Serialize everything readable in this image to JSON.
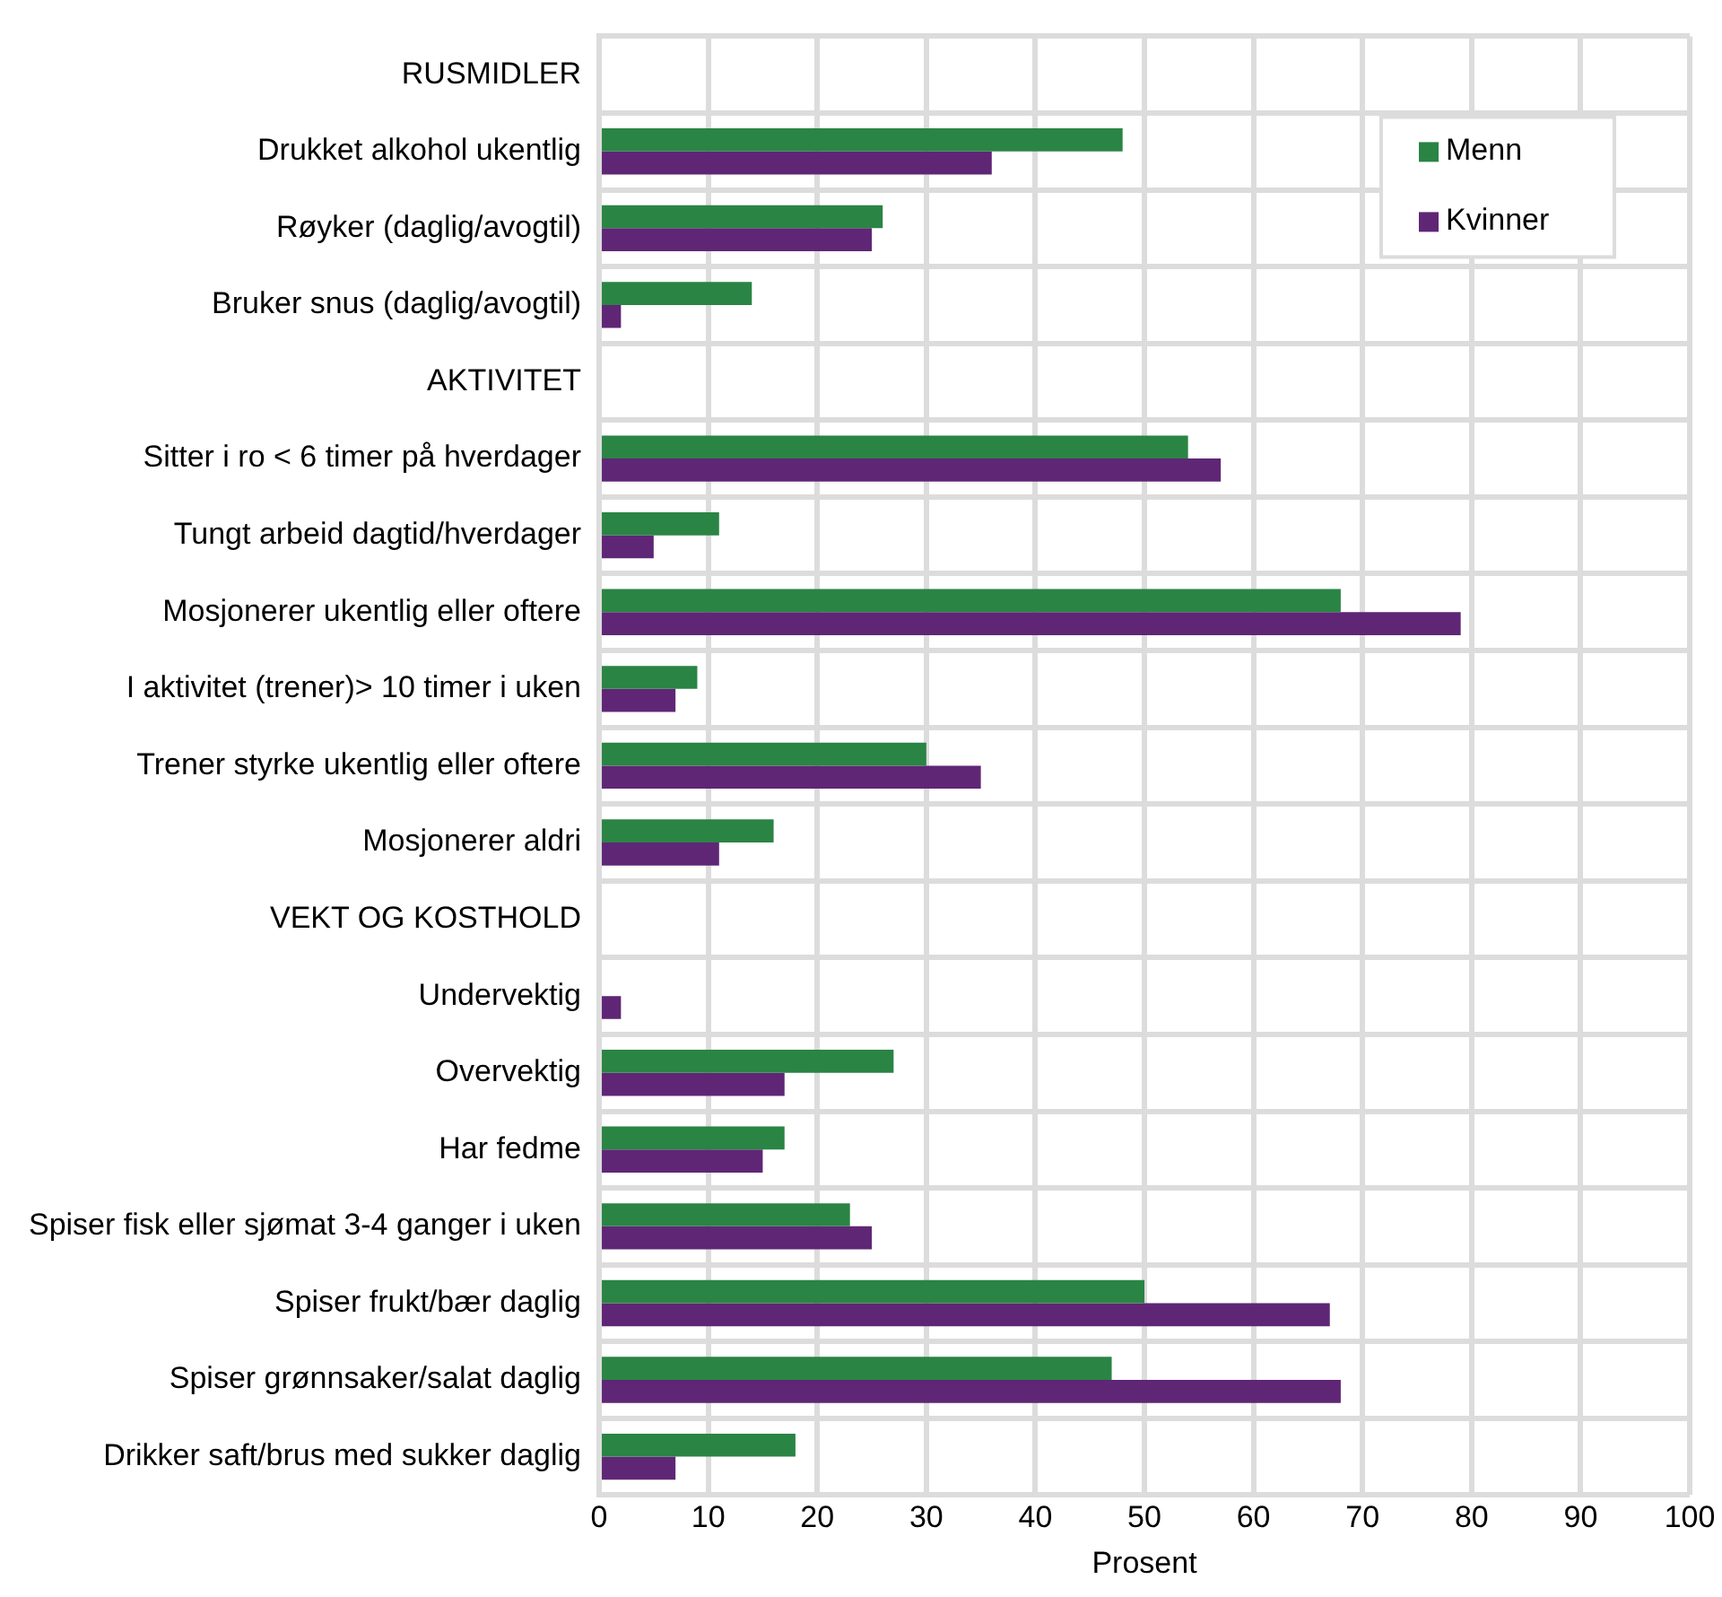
{
  "chart_data": {
    "type": "bar",
    "orientation": "horizontal",
    "xlabel": "Prosent",
    "categories": [
      "RUSMIDLER",
      "Drukket alkohol ukentlig",
      "Røyker (daglig/avogtil)",
      "Bruker snus (daglig/avogtil)",
      "AKTIVITET",
      "Sitter i ro < 6 timer på hverdager",
      "Tungt arbeid dagtid/hverdager",
      "Mosjonerer ukentlig eller oftere",
      "I aktivitet (trener)> 10 timer i uken",
      "Trener styrke ukentlig eller oftere",
      "Mosjonerer aldri",
      "VEKT OG KOSTHOLD",
      "Undervektig",
      "Overvektig",
      "Har fedme",
      "Spiser fisk eller sjømat 3-4 ganger i uken",
      "Spiser frukt/bær daglig",
      "Spiser grønnsaker/salat daglig",
      "Drikker saft/brus med sukker daglig"
    ],
    "series": [
      {
        "name": "Menn",
        "color": "#2a8444",
        "values": [
          null,
          48,
          26,
          14,
          null,
          54,
          11,
          68,
          9,
          30,
          16,
          null,
          null,
          27,
          17,
          23,
          50,
          47,
          18
        ]
      },
      {
        "name": "Kvinner",
        "color": "#5f2675",
        "values": [
          null,
          36,
          25,
          2,
          null,
          57,
          5,
          79,
          7,
          35,
          11,
          null,
          2,
          17,
          15,
          25,
          67,
          68,
          7
        ]
      }
    ],
    "xlim": [
      0,
      100
    ],
    "xticks": [
      0,
      10,
      20,
      30,
      40,
      50,
      60,
      70,
      80,
      90,
      100
    ],
    "grid": true,
    "legend": "top right"
  }
}
